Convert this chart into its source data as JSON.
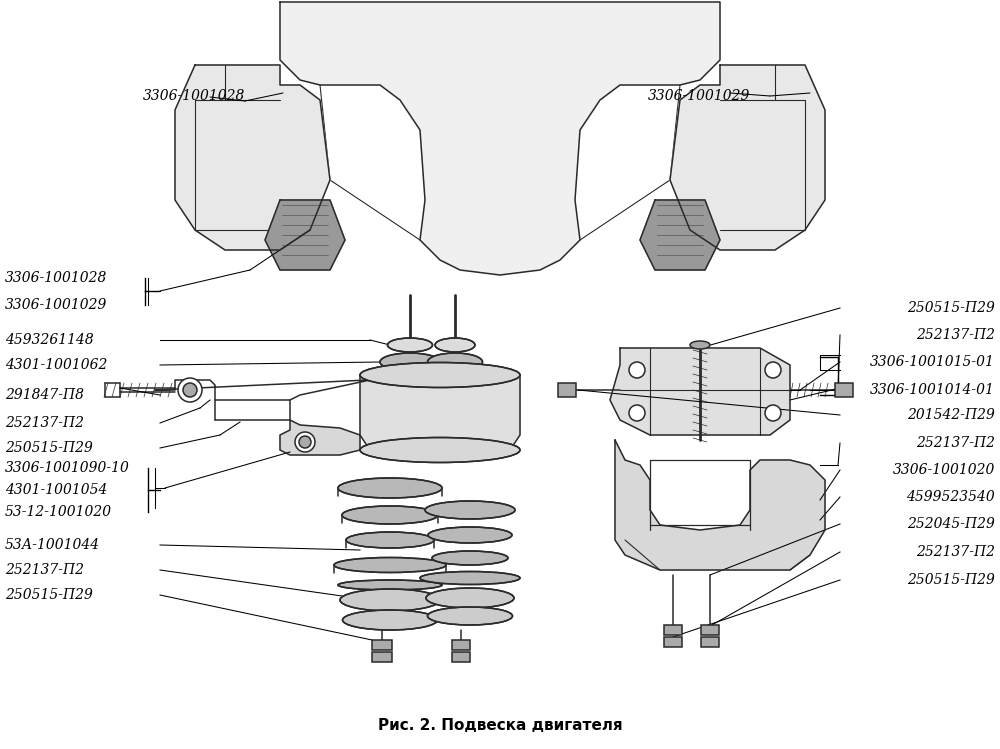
{
  "title": "Рис. 2. Подвеска двигателя",
  "background_color": "#f5f5f0",
  "font_color": "#000000",
  "font_size": 9.5,
  "font_style": "italic",
  "line_color": "#000000",
  "drawing_color": "#2a2a2a",
  "title_fontsize": 11,
  "left_labels": [
    {
      "text": "3306-1001028",
      "xf": 0.005,
      "yf": 0.648
    },
    {
      "text": "3306-1001029",
      "xf": 0.005,
      "yf": 0.62
    },
    {
      "text": "4593261148",
      "xf": 0.005,
      "yf": 0.588
    },
    {
      "text": "4301-1001062",
      "xf": 0.005,
      "yf": 0.558
    },
    {
      "text": "291847-П8",
      "xf": 0.005,
      "yf": 0.528
    },
    {
      "text": "252137-П2",
      "xf": 0.005,
      "yf": 0.5
    },
    {
      "text": "250515-П29",
      "xf": 0.005,
      "yf": 0.47
    },
    {
      "text": "3306-1001090-10",
      "xf": 0.005,
      "yf": 0.438
    },
    {
      "text": "4301-1001054",
      "xf": 0.005,
      "yf": 0.41
    },
    {
      "text": "53-12-1001020",
      "xf": 0.005,
      "yf": 0.38
    },
    {
      "text": "53А-1001044",
      "xf": 0.005,
      "yf": 0.345
    },
    {
      "text": "252137-П2",
      "xf": 0.005,
      "yf": 0.315
    },
    {
      "text": "250515-П29",
      "xf": 0.005,
      "yf": 0.285
    }
  ],
  "right_labels": [
    {
      "text": "250515-П29",
      "xf": 0.995,
      "yf": 0.595
    },
    {
      "text": "252137-П2",
      "xf": 0.995,
      "yf": 0.567
    },
    {
      "text": "3306-1001015-01",
      "xf": 0.995,
      "yf": 0.538
    },
    {
      "text": "3306-1001014-01",
      "xf": 0.995,
      "yf": 0.51
    },
    {
      "text": "201542-П29",
      "xf": 0.995,
      "yf": 0.482
    },
    {
      "text": "252137-П2",
      "xf": 0.995,
      "yf": 0.452
    },
    {
      "text": "3306-1001020",
      "xf": 0.995,
      "yf": 0.424
    },
    {
      "text": "4599523540",
      "xf": 0.995,
      "yf": 0.394
    },
    {
      "text": "252045-П29",
      "xf": 0.995,
      "yf": 0.364
    },
    {
      "text": "252137-П2",
      "xf": 0.995,
      "yf": 0.334
    },
    {
      "text": "250515-П29",
      "xf": 0.995,
      "yf": 0.304
    }
  ],
  "top_left_label": {
    "text": "3306-1001028",
    "xf": 0.142,
    "yf": 0.868
  },
  "top_right_label": {
    "text": "3306-1001029",
    "xf": 0.636,
    "yf": 0.868
  }
}
